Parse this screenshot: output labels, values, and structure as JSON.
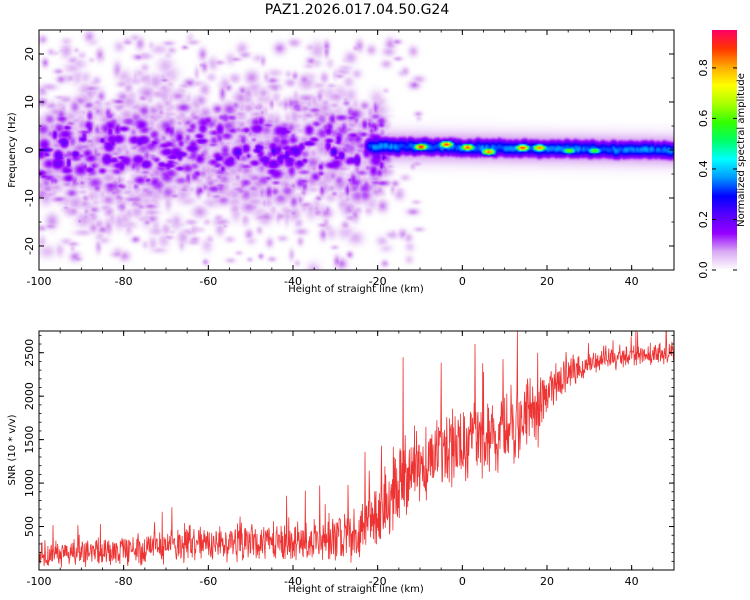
{
  "title": "PAZ1.2026.017.04.50.G24",
  "chart_data": [
    {
      "type": "heatmap",
      "title": "PAZ1.2026.017.04.50.G24",
      "xlabel": "Height of straight line (km)",
      "ylabel": "Frequency (Hz)",
      "xlim": [
        -100,
        50
      ],
      "ylim": [
        -25,
        25
      ],
      "xticks": [
        -100,
        -80,
        -60,
        -40,
        -20,
        0,
        20,
        40
      ],
      "yticks": [
        -20,
        -10,
        0,
        10,
        20
      ],
      "colorbar": {
        "label": "Normalized spectral amplitude",
        "range": [
          0,
          0.95
        ],
        "ticks": [
          0.0,
          0.2,
          0.4,
          0.6,
          0.8
        ],
        "colors": [
          "#ffffff",
          "#d9a8f2",
          "#9400ff",
          "#5500ff",
          "#0000ff",
          "#0099ff",
          "#00ffff",
          "#00ff66",
          "#33ff00",
          "#aaff00",
          "#ffff00",
          "#ffaa00",
          "#ff3300",
          "#ff0066"
        ]
      },
      "description_of_field": [
        {
          "region": "x -100 to -20",
          "frequency_spread_hz": 12,
          "peak_amplitude": 0.25
        },
        {
          "region": "x -20 to 50",
          "frequency_spread_hz": 1.5,
          "peak_amplitude": 0.95
        }
      ],
      "ridge_peaks": [
        {
          "x": -18,
          "y": 1.5,
          "v": 0.3
        },
        {
          "x": -10,
          "y": 0.8,
          "v": 0.92
        },
        {
          "x": -4,
          "y": 1.3,
          "v": 0.9
        },
        {
          "x": 1,
          "y": 0.7,
          "v": 0.88
        },
        {
          "x": 6,
          "y": -0.2,
          "v": 0.86
        },
        {
          "x": 14,
          "y": 0.6,
          "v": 0.9
        },
        {
          "x": 18,
          "y": 0.6,
          "v": 0.85
        },
        {
          "x": 25,
          "y": 0.0,
          "v": 0.65
        },
        {
          "x": 31,
          "y": 0.0,
          "v": 0.62
        }
      ]
    },
    {
      "type": "line",
      "xlabel": "Height of straight line (km)",
      "ylabel": "SNR (10 * v/v)",
      "xlim": [
        -100,
        50
      ],
      "ylim": [
        0,
        2750
      ],
      "xticks": [
        -100,
        -80,
        -60,
        -40,
        -20,
        0,
        20,
        40
      ],
      "yticks": [
        500,
        1000,
        1500,
        2000,
        2500
      ],
      "color": "#ee3333",
      "series": [
        {
          "name": "SNR",
          "x": [
            -100,
            -90,
            -80,
            -70,
            -60,
            -50,
            -40,
            -30,
            -25,
            -21,
            -18,
            -15,
            -10,
            -5,
            0,
            5,
            10,
            15,
            18,
            20,
            25,
            30,
            35,
            40,
            45,
            50
          ],
          "mean": [
            180,
            190,
            220,
            270,
            300,
            310,
            340,
            380,
            420,
            560,
            800,
            1000,
            1200,
            1350,
            1450,
            1550,
            1650,
            1750,
            1850,
            2050,
            2250,
            2400,
            2450,
            2450,
            2480,
            2500
          ],
          "spread": [
            140,
            150,
            160,
            180,
            190,
            200,
            220,
            270,
            300,
            380,
            420,
            420,
            400,
            420,
            450,
            450,
            430,
            400,
            380,
            250,
            200,
            150,
            130,
            120,
            120,
            120
          ],
          "notable_peaks": [
            {
              "x": -14,
              "y": 2450
            },
            {
              "x": 3,
              "y": 2600
            },
            {
              "x": 13,
              "y": 2750
            }
          ]
        }
      ]
    }
  ]
}
